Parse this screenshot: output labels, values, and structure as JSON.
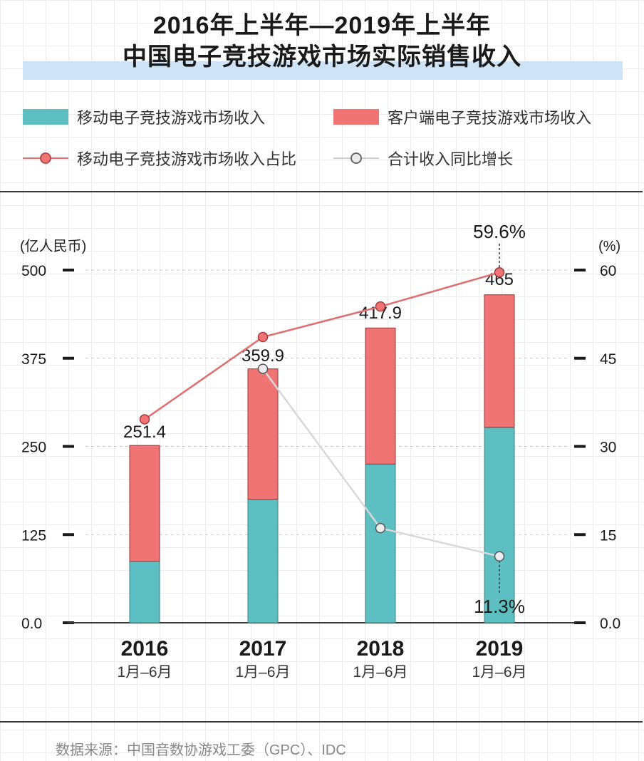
{
  "title": {
    "line1": "2016年上半年—2019年上半年",
    "line2": "中国电子竞技游戏市场实际销售收入"
  },
  "legend": {
    "mobile_revenue": "移动电子竞技游戏市场收入",
    "client_revenue": "客户端电子竞技游戏市场收入",
    "mobile_share": "移动电子竞技游戏市场收入占比",
    "total_yoy": "合计收入同比增长"
  },
  "source": "数据来源：中国音数协游戏工委（GPC）、IDC",
  "colors": {
    "mobile": "#5ebfc3",
    "client": "#f07474",
    "share_line": "#e06e6e",
    "yoy_line": "#d8d8d8"
  },
  "chart_data": {
    "type": "bar",
    "stacked": true,
    "categories": [
      "2016",
      "2017",
      "2018",
      "2019"
    ],
    "category_sublabels": [
      "1月–6月",
      "1月–6月",
      "1月–6月",
      "1月–6月"
    ],
    "ylabel": "(亿人民币)",
    "ylabel_right": "(%)",
    "ylim": [
      0,
      500
    ],
    "ylim_right": [
      0,
      60
    ],
    "yticks": [
      "0.0",
      "125",
      "250",
      "375",
      "500"
    ],
    "yticks_right": [
      "0.0",
      "15",
      "30",
      "45",
      "60"
    ],
    "grid": true,
    "totals": [
      251.4,
      359.9,
      417.9,
      465
    ],
    "total_labels": [
      "251.4",
      "359.9",
      "417.9",
      "465"
    ],
    "series": [
      {
        "name": "移动电子竞技游戏市场收入",
        "values": [
          87,
          175,
          225,
          277
        ]
      },
      {
        "name": "客户端电子竞技游戏市场收入",
        "values": [
          164.4,
          184.9,
          192.9,
          188
        ]
      }
    ],
    "lines": [
      {
        "name": "移动电子竞技游戏市场收入占比",
        "axis": "right",
        "values": [
          34.6,
          48.6,
          53.8,
          59.6
        ]
      },
      {
        "name": "合计收入同比增长",
        "axis": "right",
        "values": [
          null,
          43.2,
          16.1,
          11.3
        ]
      }
    ],
    "annotations": [
      "59.6%",
      "11.3%"
    ]
  }
}
